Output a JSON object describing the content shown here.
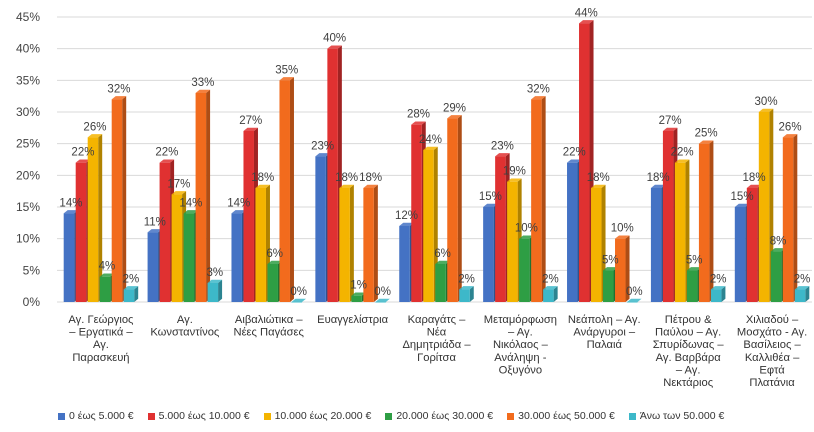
{
  "chart_data": {
    "type": "bar",
    "title": "",
    "xlabel": "",
    "ylabel": "",
    "ylim": [
      0,
      45
    ],
    "yticks": [
      "0%",
      "5%",
      "10%",
      "15%",
      "20%",
      "25%",
      "30%",
      "35%",
      "40%",
      "45%"
    ],
    "grid": true,
    "legend_position": "bottom",
    "categories": [
      [
        "Αγ. Γεώργιος",
        "– Εργατικά –",
        "Αγ.",
        "Παρασκευή"
      ],
      [
        "Αγ.",
        "Κωνσταντίνος"
      ],
      [
        "Αιβαλιώτικα –",
        "Νέες Παγάσες"
      ],
      [
        "Ευαγγελίστρια"
      ],
      [
        "Καραγάτς –",
        "Νέα",
        "Δημητριάδα –",
        "Γορίτσα"
      ],
      [
        "Μεταμόρφωση",
        "– Αγ.",
        "Νικόλαος –",
        "Ανάληψη -",
        "Οξυγόνο"
      ],
      [
        "Νεάπολη – Αγ.",
        "Ανάργυροι –",
        "Παλαιά"
      ],
      [
        "Πέτρου &",
        "Παύλου – Αγ.",
        "Σπυρίδωνας –",
        "Αγ. Βαρβάρα",
        "– Αγ.",
        "Νεκτάριος"
      ],
      [
        "Χιλιαδού –",
        "Μοσχάτο - Αγ.",
        "Βασίλειος –",
        "Καλλιθέα –",
        "Εφτά",
        "Πλατάνια"
      ]
    ],
    "series": [
      {
        "name": "0 έως 5.000 €",
        "color": "#4472C4",
        "values": [
          14,
          11,
          14,
          23,
          12,
          15,
          22,
          18,
          15
        ]
      },
      {
        "name": "5.000 έως 10.000 €",
        "color": "#E03131",
        "values": [
          22,
          22,
          27,
          40,
          28,
          23,
          44,
          27,
          18
        ]
      },
      {
        "name": "10.000 έως 20.000 €",
        "color": "#F4B400",
        "values": [
          26,
          17,
          18,
          18,
          24,
          19,
          18,
          22,
          30
        ]
      },
      {
        "name": "20.000 έως 30.000 €",
        "color": "#2E9E44",
        "values": [
          4,
          14,
          6,
          1,
          6,
          10,
          5,
          5,
          8
        ]
      },
      {
        "name": "30.000 έως 50.000 €",
        "color": "#F26B1D",
        "values": [
          32,
          33,
          35,
          18,
          29,
          32,
          10,
          25,
          26
        ]
      },
      {
        "name": "Άνω των 50.000 €",
        "color": "#3DB8C9",
        "values": [
          2,
          3,
          0,
          0,
          2,
          2,
          0,
          2,
          2
        ]
      }
    ]
  }
}
